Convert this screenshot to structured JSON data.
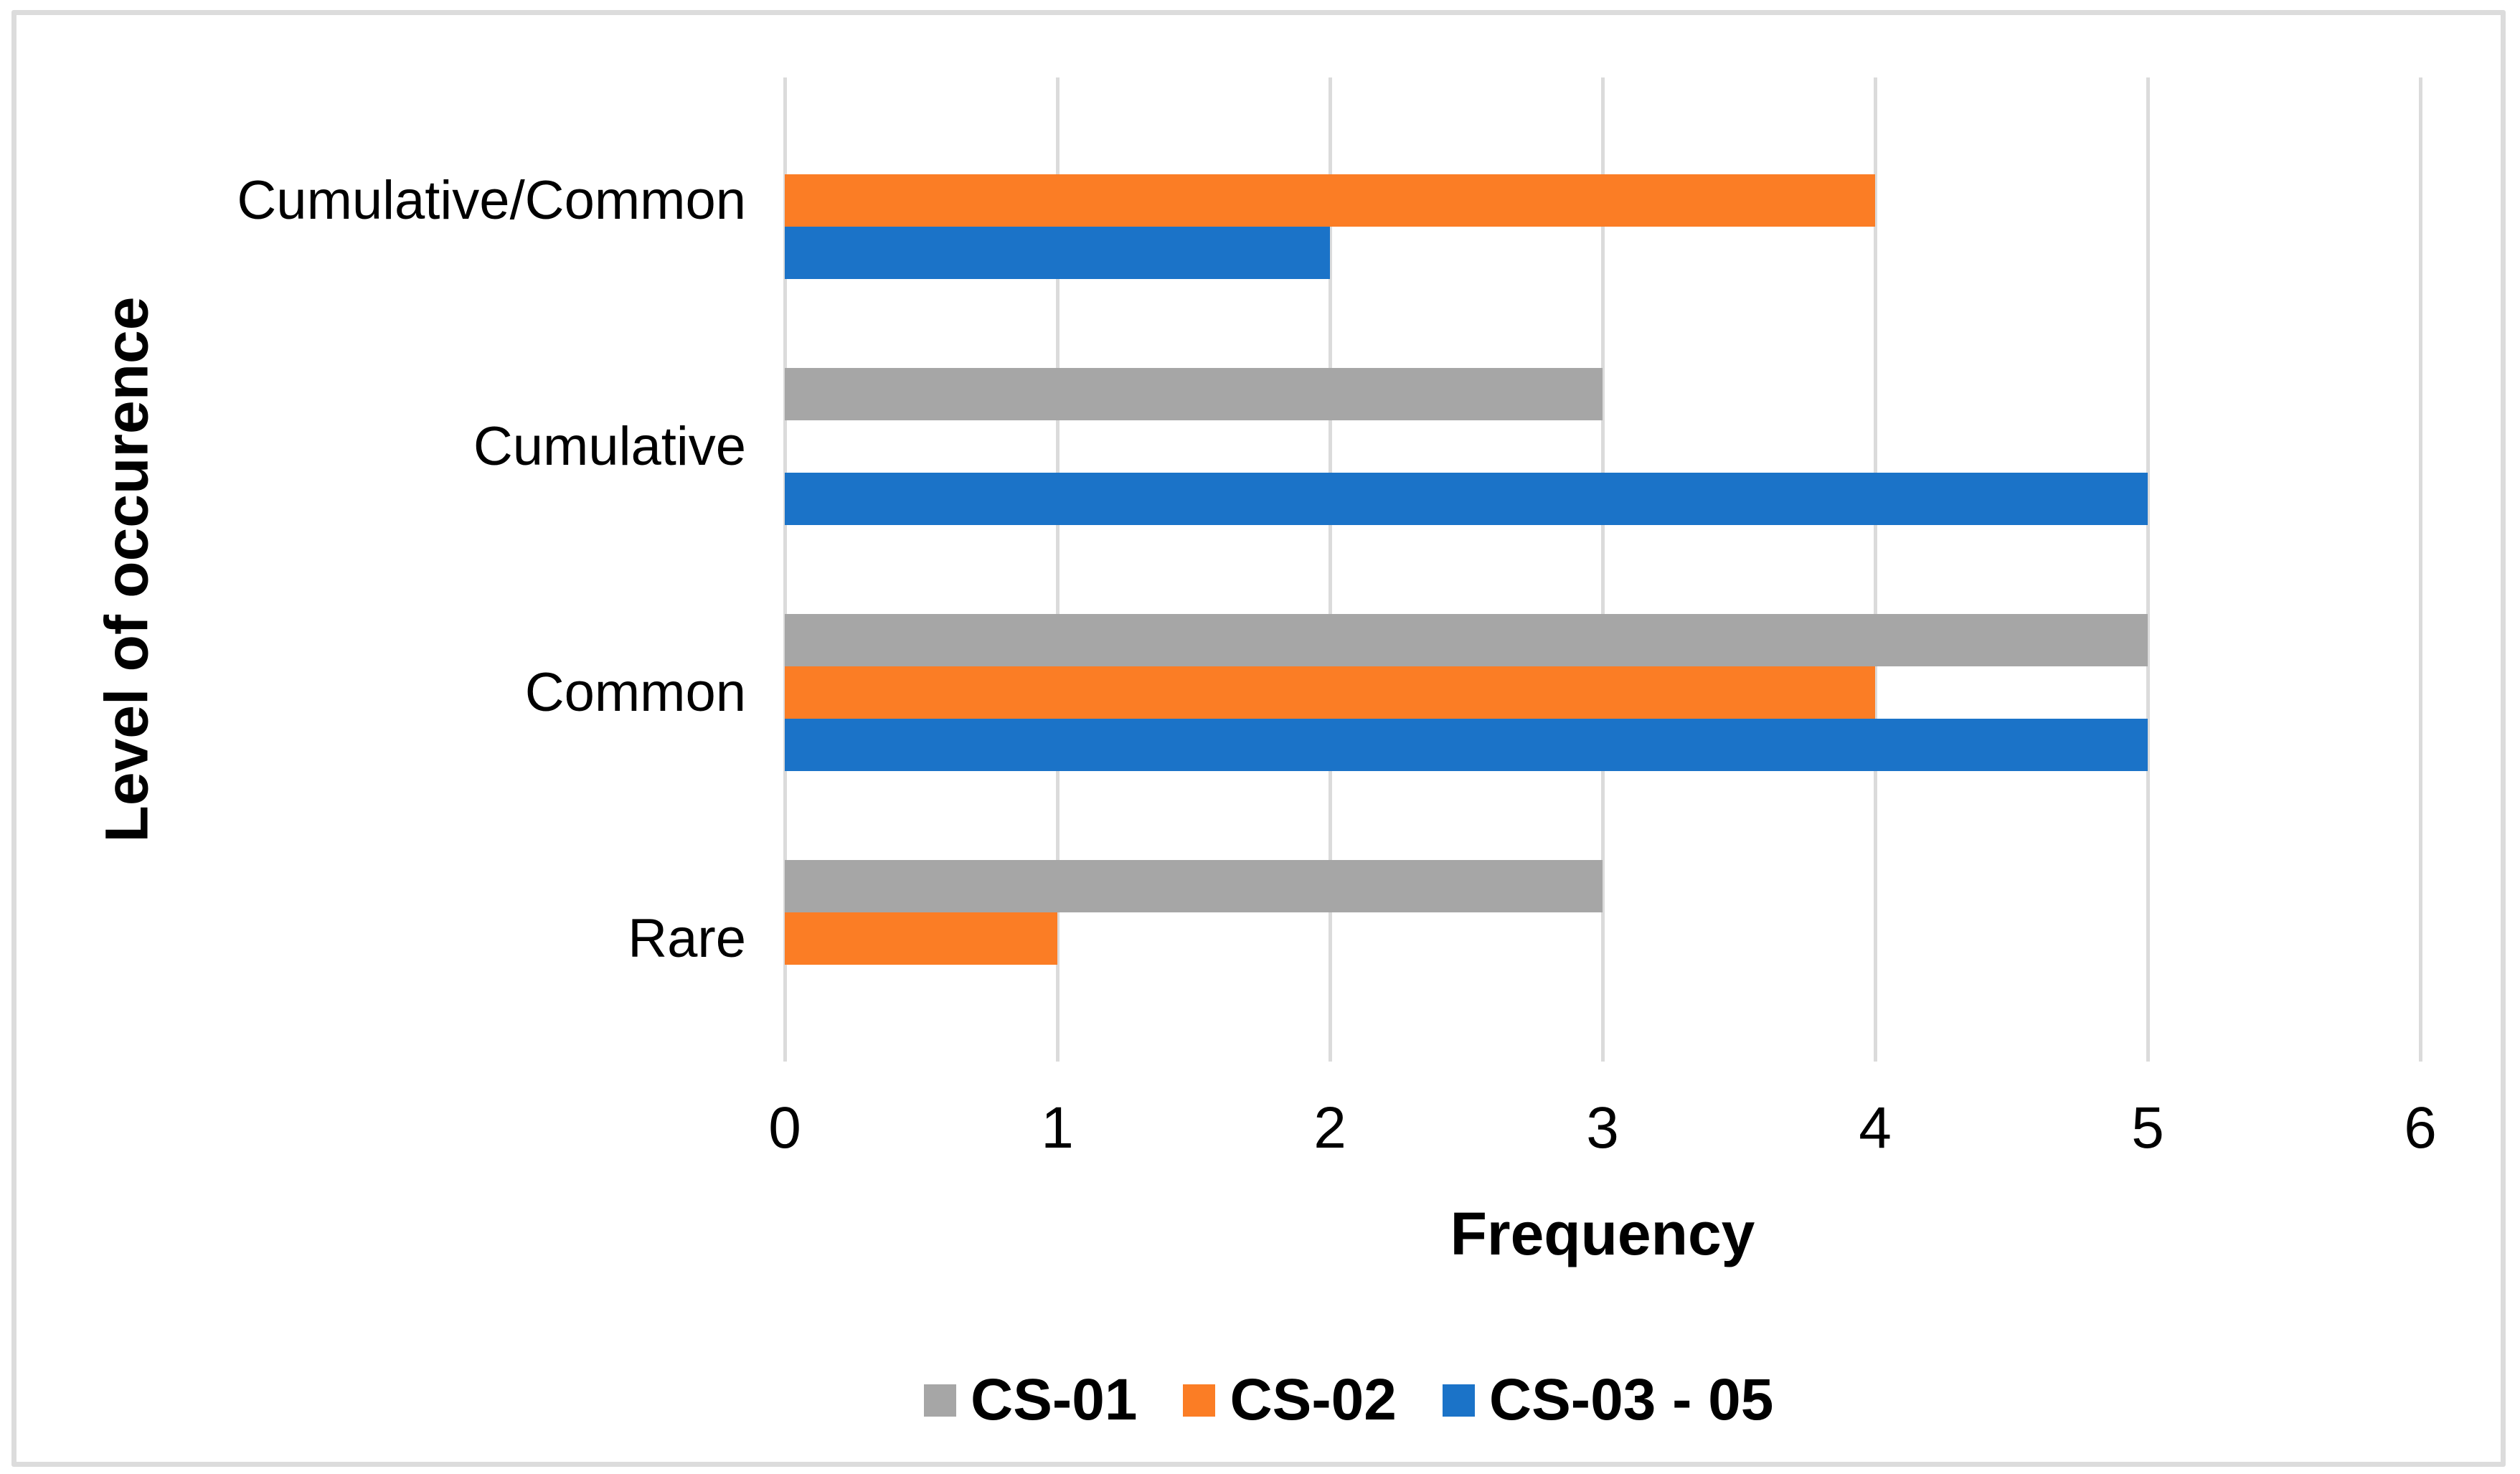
{
  "chart_data": {
    "type": "bar",
    "orientation": "horizontal",
    "categories": [
      "Cumulative/Common",
      "Cumulative",
      "Common",
      "Rare"
    ],
    "series": [
      {
        "name": "CS-01",
        "color": "#A6A6A6",
        "values": [
          0,
          3,
          5,
          3
        ]
      },
      {
        "name": "CS-02",
        "color": "#FB7D25",
        "values": [
          4,
          0,
          4,
          1
        ]
      },
      {
        "name": "CS-03 - 05",
        "color": "#1B73C8",
        "values": [
          2,
          5,
          5,
          0
        ]
      }
    ],
    "xlabel": "Frequency",
    "ylabel": "Level of occurence",
    "xlim": [
      0,
      6
    ],
    "x_tick_labels": [
      "0",
      "1",
      "2",
      "3",
      "4",
      "5",
      "6"
    ],
    "grid": "vertical-only",
    "gridline_color": "#DBDBDB",
    "legend_position": "bottom",
    "zero_bars_not_drawn": true
  },
  "frame": {
    "border_color": "#DCDCDC",
    "background_color": "#FFFFFF",
    "text_color": "#000000"
  }
}
